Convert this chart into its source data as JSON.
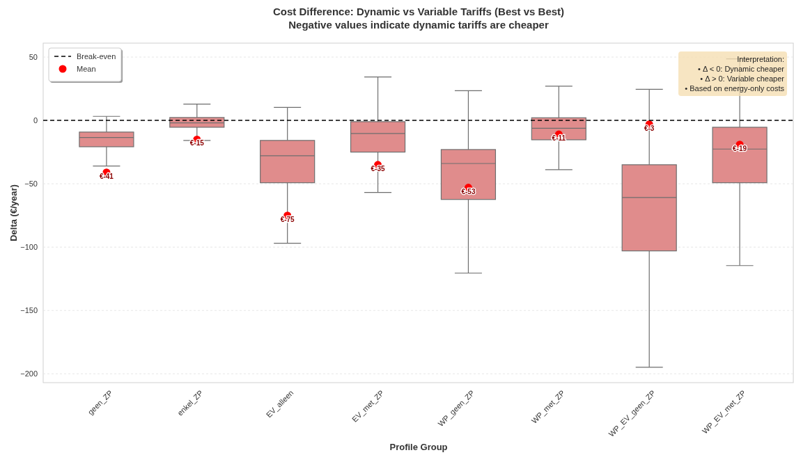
{
  "chart_data": {
    "type": "box",
    "title": "Cost Difference: Dynamic vs Variable Tariffs (Best vs Best)",
    "subtitle": "Negative values indicate dynamic tariffs are cheaper",
    "xlabel": "Profile Group",
    "ylabel": "Delta (€/year)",
    "categories": [
      "geen_ZP",
      "enkel_ZP",
      "EV_alleen",
      "EV_met_ZP",
      "WP_geen_ZP",
      "WP_met_ZP",
      "WP_EV_geen_ZP",
      "WP_EV_met_ZP"
    ],
    "series": [
      {
        "color": "#e08c8c",
        "boxes": [
          {
            "low": -36,
            "q1": -20.8,
            "median": -13.5,
            "q3": -9.2,
            "high": 3.2
          },
          {
            "low": -15.8,
            "q1": -5.4,
            "median": -1.9,
            "q3": 2.3,
            "high": 12.9
          },
          {
            "low": -97,
            "q1": -49.2,
            "median": -27.9,
            "q3": -15.8,
            "high": 10.3
          },
          {
            "low": -56.9,
            "q1": -25,
            "median": -10.3,
            "q3": -1,
            "high": 34.3
          },
          {
            "low": -120.5,
            "q1": -62.4,
            "median": -34,
            "q3": -23,
            "high": 23.4
          },
          {
            "low": -38.9,
            "q1": -15.3,
            "median": -6.2,
            "q3": 2.1,
            "high": 27
          },
          {
            "low": -194.8,
            "q1": -103,
            "median": -60.8,
            "q3": -35,
            "high": 24.5
          },
          {
            "low": -114.6,
            "q1": -49.2,
            "median": -22.6,
            "q3": -5.4,
            "high": 48.6
          }
        ]
      },
      {
        "type": "scatter",
        "name": "Mean",
        "color": "#ff0000",
        "x": [
          "geen_ZP",
          "enkel_ZP",
          "EV_alleen",
          "EV_met_ZP",
          "WP_geen_ZP",
          "WP_met_ZP",
          "WP_EV_geen_ZP",
          "WP_EV_met_ZP"
        ],
        "values": [
          -41,
          -15,
          -75,
          -35,
          -53,
          -11,
          -3,
          -19
        ],
        "value_labels": [
          "€-41",
          "€-15",
          "€-75",
          "€-35",
          "€-53",
          "€-11",
          "€-3",
          "€-19"
        ]
      }
    ],
    "ref_lines": [
      {
        "axis": "y",
        "value": 0,
        "label": "Break-even",
        "color": "#000000",
        "line_style": "dashed"
      }
    ],
    "annotations": [
      "Interpretation:\n• Δ < 0: Dynamic cheaper\n• Δ > 0: Variable cheaper\n• Based on energy-only costs"
    ],
    "ylim": [
      -207,
      61
    ],
    "yticks": [
      -200,
      -150,
      -100,
      -50,
      0,
      50
    ],
    "grid": "y",
    "legend": "top left",
    "marker": "circle"
  }
}
